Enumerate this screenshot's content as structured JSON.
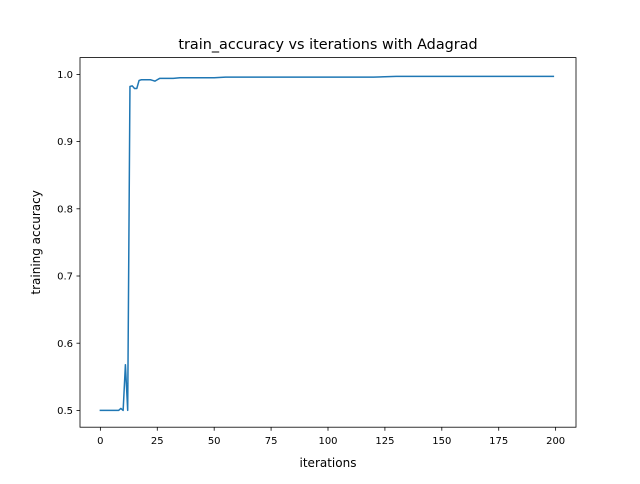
{
  "chart_data": {
    "type": "line",
    "title": "train_accuracy vs iterations with Adagrad",
    "xlabel": "iterations",
    "ylabel": "training accuracy",
    "xlim": [
      -8.95,
      208.95
    ],
    "ylim": [
      0.475,
      1.025
    ],
    "xticks": [
      0,
      25,
      50,
      75,
      100,
      125,
      150,
      175,
      200
    ],
    "xtick_labels": [
      "0",
      "25",
      "50",
      "75",
      "100",
      "125",
      "150",
      "175",
      "200"
    ],
    "yticks": [
      0.5,
      0.6,
      0.7,
      0.8,
      0.9,
      1.0
    ],
    "ytick_labels": [
      "0.5",
      "0.6",
      "0.7",
      "0.8",
      "0.9",
      "1.0"
    ],
    "grid": false,
    "legend": "none",
    "line_color": "#1f77b4",
    "series": [
      {
        "x": [
          0,
          1,
          2,
          3,
          4,
          5,
          6,
          7,
          8,
          9,
          10,
          11,
          12,
          13,
          14,
          15,
          16,
          17,
          18,
          19,
          20,
          21,
          22,
          23,
          24,
          25,
          26,
          27,
          28,
          30,
          32,
          35,
          40,
          45,
          50,
          55,
          60,
          70,
          80,
          90,
          100,
          110,
          120,
          130,
          140,
          150,
          160,
          170,
          180,
          190,
          199
        ],
        "values": [
          0.5,
          0.5,
          0.5,
          0.5,
          0.5,
          0.5,
          0.5,
          0.5,
          0.5,
          0.503,
          0.5,
          0.568,
          0.5,
          0.982,
          0.983,
          0.979,
          0.979,
          0.991,
          0.992,
          0.992,
          0.992,
          0.992,
          0.992,
          0.991,
          0.99,
          0.992,
          0.994,
          0.994,
          0.994,
          0.994,
          0.994,
          0.995,
          0.995,
          0.995,
          0.995,
          0.996,
          0.996,
          0.996,
          0.996,
          0.996,
          0.996,
          0.996,
          0.996,
          0.997,
          0.997,
          0.997,
          0.997,
          0.997,
          0.997,
          0.997,
          0.997
        ]
      }
    ]
  }
}
